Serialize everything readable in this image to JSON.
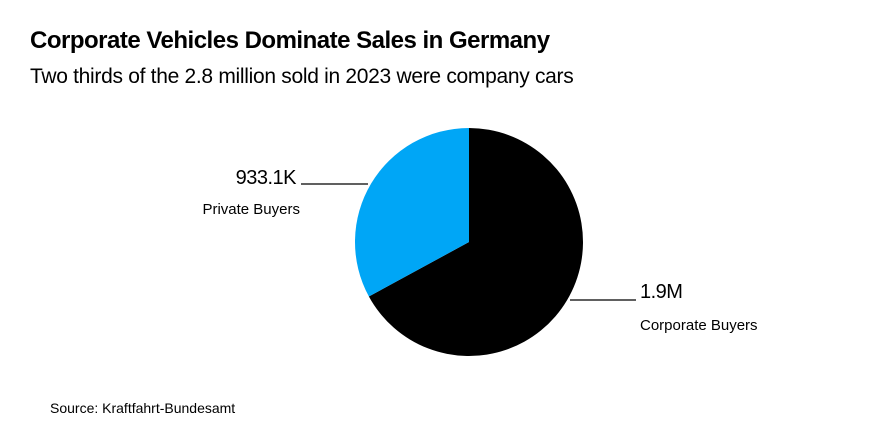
{
  "header": {
    "title": "Corporate Vehicles Dominate Sales in Germany",
    "subtitle": "Two thirds of the 2.8 million sold in 2023 were company cars"
  },
  "footer": {
    "source": "Source: Kraftfahrt-Bundesamt"
  },
  "chart_data": {
    "type": "pie",
    "title": "Corporate Vehicles Dominate Sales in Germany",
    "subtitle": "Two thirds of the 2.8 million sold in 2023 were company cars",
    "start_angle": "12 o'clock",
    "slices": [
      {
        "name": "Corporate Buyers",
        "value": 1900000,
        "display_value": "1.9M",
        "color": "#000000",
        "direction": "clockwise"
      },
      {
        "name": "Private Buyers",
        "value": 933100,
        "display_value": "933.1K",
        "color": "#00a6f6",
        "direction": "counter-clockwise"
      }
    ],
    "legend": "none"
  }
}
